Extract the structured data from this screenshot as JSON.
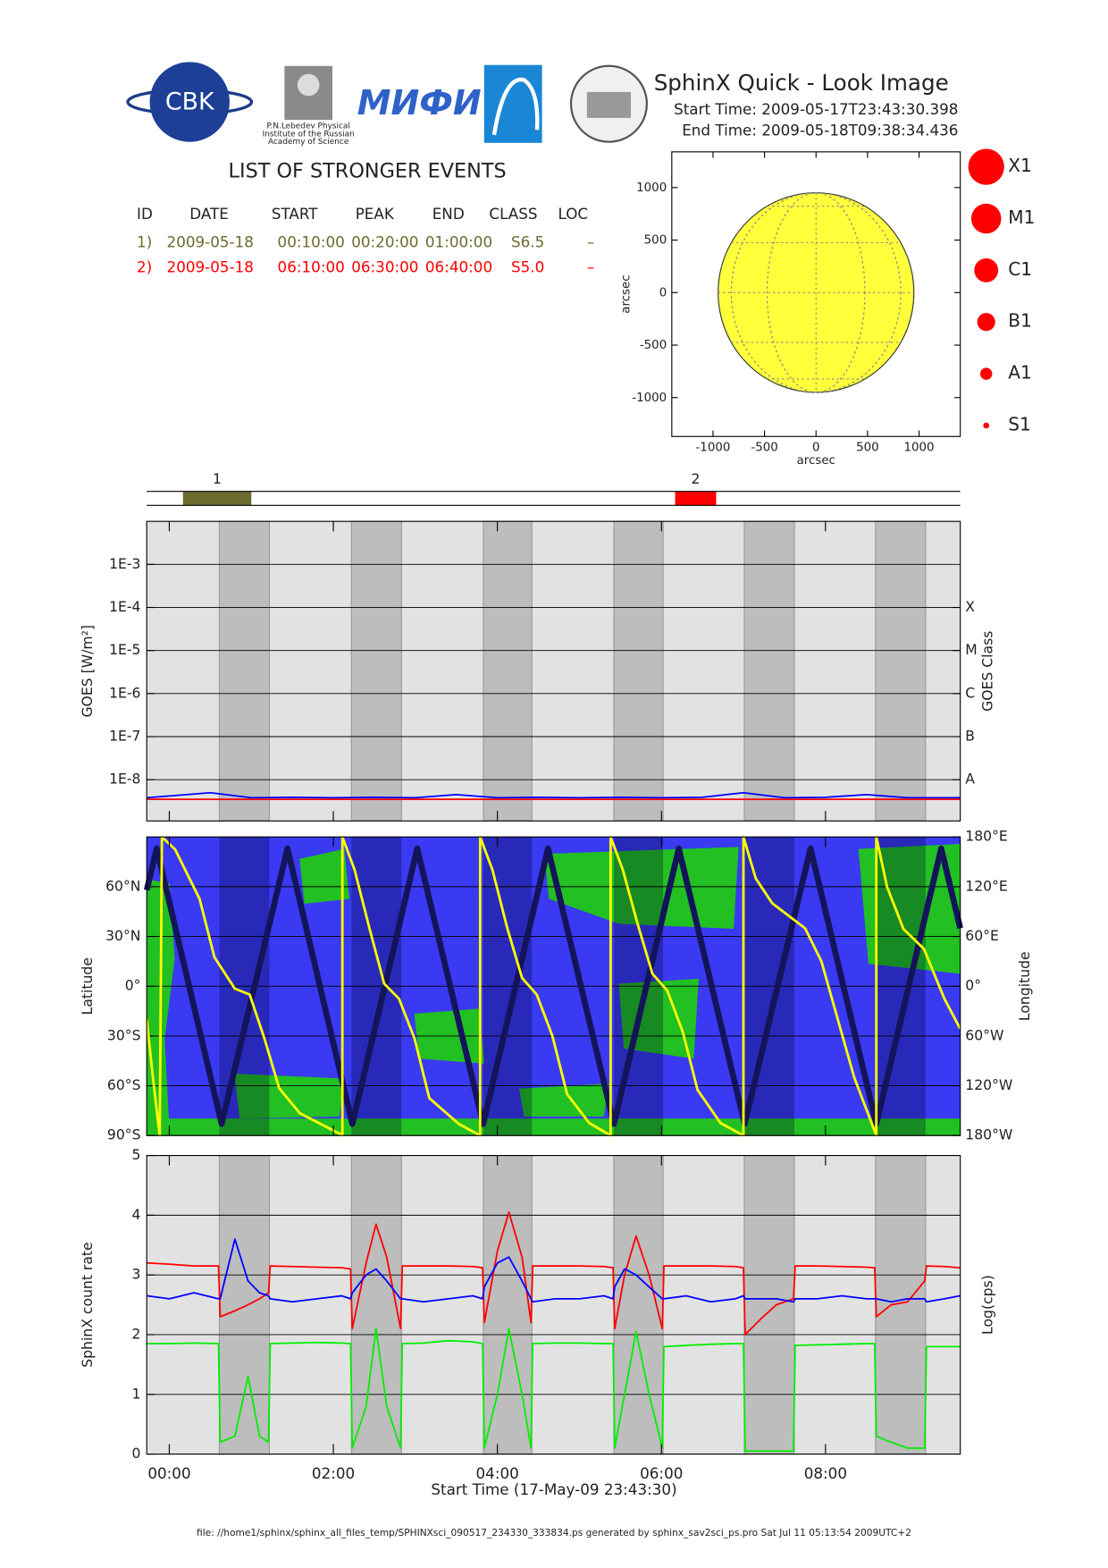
{
  "header": {
    "title": "SphinX Quick - Look Image",
    "start_time": "Start Time: 2009-05-17T23:43:30.398",
    "end_time": "End Time: 2009-05-18T09:38:34.436"
  },
  "logos": {
    "cbk": "CBK",
    "lebedev": [
      "P.N.Lebedev Physical",
      "Institute of the Russian",
      "Academy of Science"
    ],
    "mifi": "МИФИ"
  },
  "events": {
    "title": "LIST OF STRONGER EVENTS",
    "columns": [
      "ID",
      "DATE",
      "START",
      "PEAK",
      "END",
      "CLASS",
      "LOC"
    ],
    "rows": [
      [
        "1)",
        "2009-05-18",
        "00:10:00",
        "00:20:00",
        "01:00:00",
        "S6.5",
        "–"
      ],
      [
        "2)",
        "2009-05-18",
        "06:10:00",
        "06:30:00",
        "06:40:00",
        "S5.0",
        "–"
      ]
    ],
    "row_colors": [
      "#6b6b2e",
      "#ff0000"
    ],
    "timeline_labels": [
      "1",
      "2"
    ]
  },
  "flare_classes": [
    "X1",
    "M1",
    "C1",
    "B1",
    "A1",
    "S1"
  ],
  "time_axis": {
    "label": "Start Time (17-May-09 23:43:30)",
    "xlim": [
      -0.2751,
      9.6429
    ],
    "xticks": [
      {
        "value": 0,
        "label": "00:00"
      },
      {
        "value": 2,
        "label": "02:00"
      },
      {
        "value": 4,
        "label": "04:00"
      },
      {
        "value": 6,
        "label": "06:00"
      },
      {
        "value": 8,
        "label": "08:00"
      }
    ],
    "night_intervals": [
      [
        0.61,
        1.22
      ],
      [
        2.22,
        2.83
      ],
      [
        3.83,
        4.42
      ],
      [
        5.42,
        6.02
      ],
      [
        7.01,
        7.62
      ],
      [
        8.61,
        9.22
      ]
    ]
  },
  "chart_data": [
    {
      "type": "disk",
      "xlabel": "arcsec",
      "ylabel": "arcsec",
      "xlim": [
        -1400,
        1400
      ],
      "ylim": [
        -1370,
        1340
      ],
      "xticks": [
        -1000,
        -500,
        0,
        500,
        1000
      ],
      "yticks": [
        -1000,
        -500,
        0,
        500,
        1000
      ],
      "disk_radius": 950,
      "color": "#ffff3c"
    },
    {
      "type": "goes",
      "ylabel": "GOES [W/m²]",
      "y2label": "GOES Class",
      "log": true,
      "grid": true,
      "ylim": [
        1.1e-09,
        0.01
      ],
      "y2lim": [
        1.1e-09,
        0.01
      ],
      "yticks": [
        {
          "value": 1e-08,
          "label": "1E-8"
        },
        {
          "value": 1e-07,
          "label": "1E-7"
        },
        {
          "value": 1e-06,
          "label": "1E-6"
        },
        {
          "value": 1e-05,
          "label": "1E-5"
        },
        {
          "value": 0.0001,
          "label": "1E-4"
        },
        {
          "value": 0.001,
          "label": "1E-3"
        }
      ],
      "y2ticks": [
        {
          "value": 1e-08,
          "label": "A"
        },
        {
          "value": 1e-07,
          "label": "B"
        },
        {
          "value": 1e-06,
          "label": "C"
        },
        {
          "value": 1e-05,
          "label": "M"
        },
        {
          "value": 0.0001,
          "label": "X"
        }
      ],
      "x": [
        -0.27,
        0.5,
        1.0,
        1.5,
        2.0,
        2.5,
        3.0,
        3.5,
        4.0,
        4.5,
        5.0,
        5.5,
        6.0,
        6.5,
        7.0,
        7.5,
        8.0,
        8.5,
        9.0,
        9.64
      ],
      "series": [
        {
          "color": "#0000ff",
          "values": [
            3.8e-09,
            5e-09,
            3.8e-09,
            3.9e-09,
            3.8e-09,
            3.9e-09,
            3.8e-09,
            4.5e-09,
            3.8e-09,
            3.9e-09,
            3.8e-09,
            3.9e-09,
            3.8e-09,
            3.9e-09,
            5e-09,
            3.8e-09,
            3.9e-09,
            4.5e-09,
            3.8e-09,
            3.8e-09
          ]
        },
        {
          "color": "#ff0000",
          "values": [
            3.5e-09,
            3.5e-09,
            3.5e-09,
            3.5e-09,
            3.5e-09,
            3.5e-09,
            3.5e-09,
            3.5e-09,
            3.5e-09,
            3.5e-09,
            3.5e-09,
            3.5e-09,
            3.5e-09,
            3.5e-09,
            3.5e-09,
            3.5e-09,
            3.5e-09,
            3.5e-09,
            3.5e-09,
            3.5e-09
          ]
        }
      ]
    },
    {
      "type": "map",
      "ylabel": "Latitude",
      "y2label": "Longitude",
      "grid": true,
      "ylim": [
        -90,
        90
      ],
      "y2lim": [
        -180,
        180
      ],
      "yticks": [
        {
          "value": -90,
          "label": "90°S"
        },
        {
          "value": -60,
          "label": "60°S"
        },
        {
          "value": -30,
          "label": "30°S"
        },
        {
          "value": 0,
          "label": "0°"
        },
        {
          "value": 30,
          "label": "30°N"
        },
        {
          "value": 60,
          "label": "60°N"
        }
      ],
      "y2ticks": [
        {
          "value": -180,
          "label": "180°W"
        },
        {
          "value": -120,
          "label": "120°W"
        },
        {
          "value": -60,
          "label": "60°W"
        },
        {
          "value": 0,
          "label": "0°"
        },
        {
          "value": 60,
          "label": "60°E"
        },
        {
          "value": 120,
          "label": "120°E"
        },
        {
          "value": 180,
          "label": "180°E"
        }
      ],
      "series": [
        {
          "color": "#14145a",
          "x": [
            -0.275,
            -0.153,
            0.638,
            1.441,
            2.232,
            3.023,
            3.826,
            4.617,
            5.42,
            6.211,
            7.014,
            7.818,
            8.62,
            9.411,
            9.643
          ],
          "values": [
            58,
            83,
            -83,
            83,
            -83,
            83,
            -83,
            83,
            -83,
            83,
            -83,
            83,
            -83,
            83,
            35
          ]
        },
        {
          "color": "#ffff00",
          "axis": "y2",
          "x": [
            -0.275,
            -0.2,
            -0.117,
            -0.09,
            0.07,
            0.37,
            0.55,
            0.8,
            0.98,
            1.16,
            1.34,
            1.59,
            2.08,
            2.11,
            2.11,
            2.26,
            2.44,
            2.62,
            2.8,
            2.99,
            3.17,
            3.53,
            3.79,
            3.79,
            3.94,
            4.12,
            4.3,
            4.48,
            4.67,
            4.85,
            5.12,
            5.38,
            5.38,
            5.53,
            5.71,
            5.89,
            6.07,
            6.26,
            6.44,
            6.72,
            7.0,
            7.0,
            7.15,
            7.35,
            7.55,
            7.75,
            7.95,
            8.15,
            8.35,
            8.62,
            8.62,
            8.75,
            8.95,
            9.2,
            9.45,
            9.64
          ],
          "values": [
            -40,
            -110,
            -180,
            180,
            165,
            105,
            35,
            -3,
            -10,
            -63,
            -123,
            -153,
            -178,
            -180,
            180,
            140,
            70,
            3,
            -15,
            -63,
            -135,
            -166,
            -180,
            180,
            140,
            70,
            10,
            -10,
            -60,
            -130,
            -165,
            -180,
            180,
            140,
            75,
            15,
            -5,
            -55,
            -125,
            -165,
            -180,
            180,
            130,
            100,
            85,
            70,
            30,
            -40,
            -110,
            -180,
            180,
            120,
            69,
            45,
            -15,
            -51
          ]
        }
      ]
    },
    {
      "type": "line",
      "ylabel": "SphinX count rate",
      "y2label": "Log(cps)",
      "grid": true,
      "ylim": [
        0,
        5
      ],
      "yticks": [
        0,
        1,
        2,
        3,
        4,
        5
      ],
      "x": [
        -0.27,
        0.0,
        0.3,
        0.6,
        0.62,
        0.8,
        0.96,
        1.1,
        1.21,
        1.23,
        1.5,
        1.8,
        2.1,
        2.21,
        2.23,
        2.4,
        2.52,
        2.65,
        2.82,
        2.84,
        3.1,
        3.4,
        3.7,
        3.82,
        3.84,
        4.0,
        4.14,
        4.3,
        4.41,
        4.43,
        4.7,
        5.0,
        5.3,
        5.41,
        5.43,
        5.55,
        5.69,
        5.85,
        6.01,
        6.03,
        6.3,
        6.6,
        6.9,
        7.0,
        7.02,
        7.2,
        7.4,
        7.61,
        7.63,
        7.9,
        8.2,
        8.5,
        8.6,
        8.62,
        8.8,
        9.0,
        9.21,
        9.23,
        9.45,
        9.64
      ],
      "series": [
        {
          "color": "#00ee00",
          "values": [
            1.85,
            1.85,
            1.86,
            1.85,
            0.2,
            0.3,
            1.3,
            0.3,
            0.2,
            1.85,
            1.86,
            1.87,
            1.86,
            1.85,
            0.1,
            0.8,
            2.1,
            0.8,
            0.1,
            1.85,
            1.86,
            1.9,
            1.88,
            1.85,
            0.1,
            1.0,
            2.1,
            1.0,
            0.1,
            1.85,
            1.86,
            1.86,
            1.85,
            1.85,
            0.1,
            1.0,
            2.05,
            1.0,
            0.1,
            1.8,
            1.82,
            1.84,
            1.85,
            1.85,
            0.05,
            0.05,
            0.05,
            0.05,
            1.82,
            1.83,
            1.84,
            1.85,
            1.85,
            0.3,
            0.2,
            0.1,
            0.1,
            1.8,
            1.8,
            1.8
          ]
        },
        {
          "color": "#ff0000",
          "values": [
            3.2,
            3.18,
            3.15,
            3.15,
            2.3,
            2.4,
            2.5,
            2.6,
            2.7,
            3.15,
            3.14,
            3.13,
            3.12,
            3.1,
            2.1,
            3.2,
            3.85,
            3.3,
            2.1,
            3.15,
            3.15,
            3.15,
            3.14,
            3.12,
            2.2,
            3.4,
            4.05,
            3.3,
            2.2,
            3.15,
            3.15,
            3.15,
            3.14,
            3.12,
            2.1,
            3.0,
            3.65,
            3.0,
            2.1,
            3.15,
            3.15,
            3.15,
            3.14,
            3.12,
            2.0,
            2.25,
            2.5,
            2.6,
            3.15,
            3.15,
            3.14,
            3.13,
            3.12,
            2.3,
            2.5,
            2.55,
            2.9,
            3.15,
            3.14,
            3.12
          ]
        },
        {
          "color": "#0000ff",
          "values": [
            2.65,
            2.6,
            2.7,
            2.6,
            2.6,
            3.6,
            2.9,
            2.7,
            2.65,
            2.6,
            2.55,
            2.6,
            2.65,
            2.6,
            2.7,
            3.0,
            3.1,
            2.9,
            2.6,
            2.6,
            2.55,
            2.6,
            2.65,
            2.6,
            2.8,
            3.2,
            3.3,
            2.9,
            2.6,
            2.55,
            2.6,
            2.6,
            2.65,
            2.6,
            2.8,
            3.1,
            3.0,
            2.8,
            2.6,
            2.6,
            2.65,
            2.55,
            2.6,
            2.65,
            2.6,
            2.6,
            2.6,
            2.55,
            2.6,
            2.6,
            2.65,
            2.6,
            2.6,
            2.6,
            2.55,
            2.6,
            2.6,
            2.55,
            2.6,
            2.65
          ]
        }
      ]
    }
  ],
  "footer": "file: //home1/sphinx/sphinx_all_files_temp/SPHINXsci_090517_234330_333834.ps generated by sphinx_sav2sci_ps.pro Sat Jul 11 05:13:54 2009UTC+2"
}
